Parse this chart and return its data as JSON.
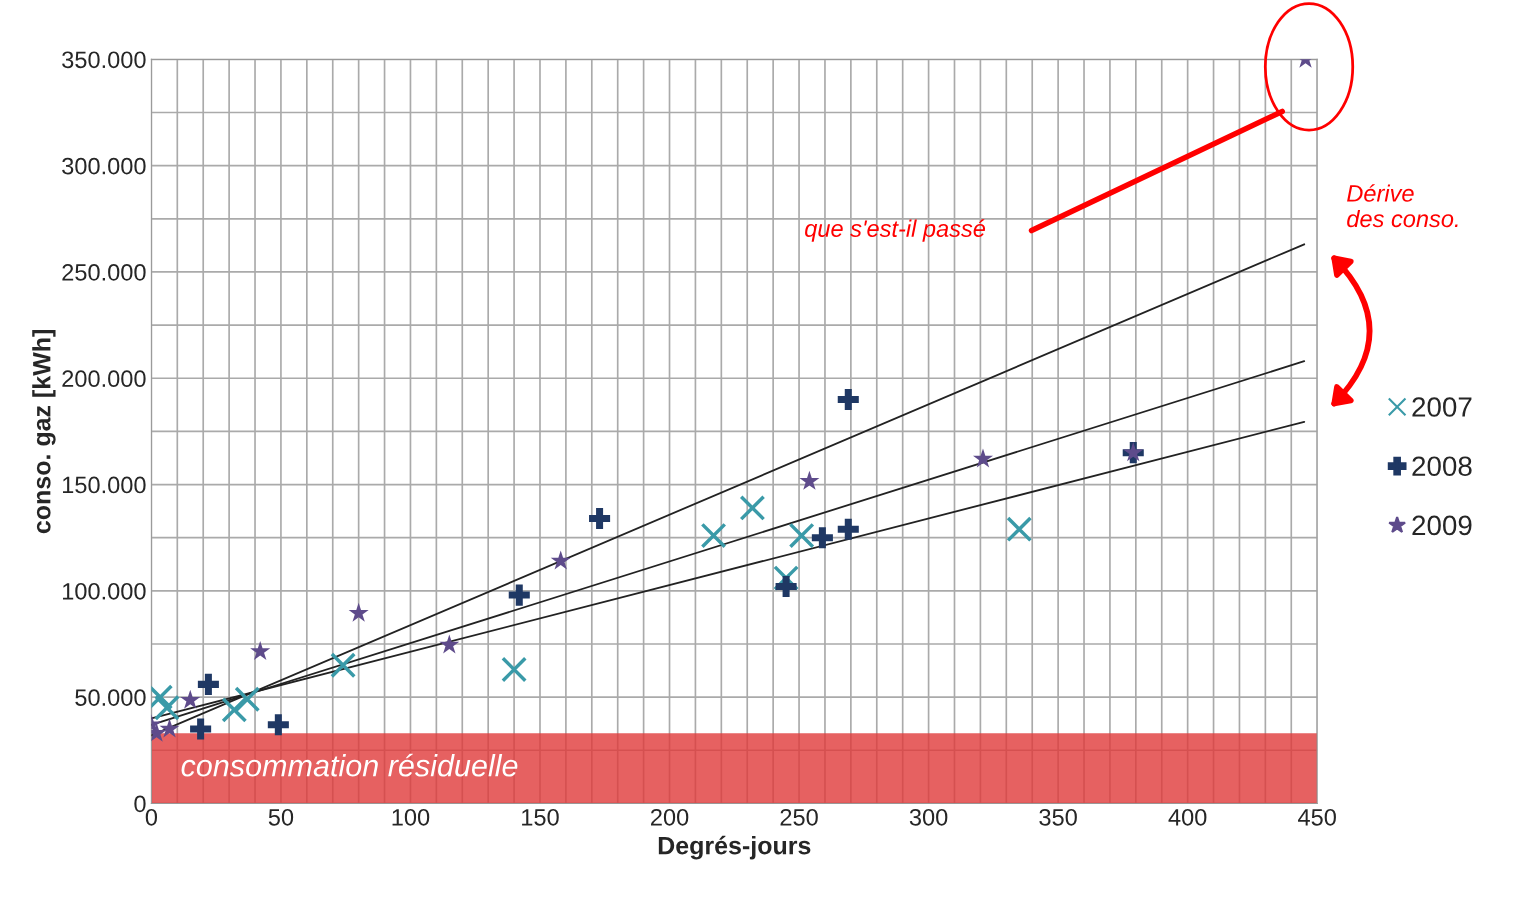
{
  "chart_data": {
    "type": "scatter",
    "xlabel": "Degrés-jours",
    "ylabel": "conso. gaz [kWh]",
    "series": [
      {
        "name": "2007",
        "color": "#3a9aa8",
        "marker": "cross",
        "x": [
          3.4,
          6,
          32,
          37,
          74,
          140,
          217,
          232,
          245,
          251,
          335
        ],
        "values": [
          50000,
          45000,
          44000,
          49000,
          65000,
          63000,
          126000,
          139000,
          106000,
          126000,
          129000
        ]
      },
      {
        "name": "2008",
        "color": "#1f3864",
        "x": [
          19,
          22,
          49,
          142,
          173,
          245,
          259,
          269,
          269,
          379
        ],
        "values": [
          35000,
          56000,
          37000,
          98000,
          134000,
          102000,
          125000,
          129000,
          190000,
          165000
        ]
      },
      {
        "name": "2009",
        "color": "#5e4b8b",
        "marker": "star",
        "x": [
          0,
          2,
          7,
          15,
          42,
          80,
          115,
          158,
          254,
          321,
          379,
          445.5
        ],
        "values": [
          37000,
          33000,
          35000,
          48500,
          71500,
          89500,
          74500,
          114000,
          151500,
          162000,
          165000,
          350000
        ]
      },
      {
        "type": "line",
        "color": "#222222",
        "x": [
          0,
          445
        ],
        "values": [
          32000,
          263000
        ]
      },
      {
        "type": "line",
        "color": "#222222",
        "x": [
          0,
          445
        ],
        "values": [
          37000,
          208000
        ]
      },
      {
        "type": "line",
        "color": "#222222",
        "x": [
          0,
          445
        ],
        "values": [
          40000,
          179500
        ]
      }
    ],
    "xlim": [
      0,
      450
    ],
    "ylim": [
      0,
      350000
    ],
    "xticks": [
      0,
      {
        "value": 10,
        "label": null
      },
      {
        "value": 20,
        "label": null
      },
      {
        "value": 30,
        "label": null
      },
      {
        "value": 40,
        "label": null
      },
      50,
      {
        "value": 60,
        "label": null
      },
      {
        "value": 70,
        "label": null
      },
      {
        "value": 80,
        "label": null
      },
      {
        "value": 90,
        "label": null
      },
      100,
      {
        "value": 110,
        "label": null
      },
      {
        "value": 120,
        "label": null
      },
      {
        "value": 130,
        "label": null
      },
      {
        "value": 140,
        "label": null
      },
      150,
      {
        "value": 160,
        "label": null
      },
      {
        "value": 170,
        "label": null
      },
      {
        "value": 180,
        "label": null
      },
      {
        "value": 190,
        "label": null
      },
      200,
      {
        "value": 210,
        "label": null
      },
      {
        "value": 220,
        "label": null
      },
      {
        "value": 230,
        "label": null
      },
      {
        "value": 240,
        "label": null
      },
      250,
      {
        "value": 260,
        "label": null
      },
      {
        "value": 270,
        "label": null
      },
      {
        "value": 280,
        "label": null
      },
      {
        "value": 290,
        "label": null
      },
      300,
      {
        "value": 310,
        "label": null
      },
      {
        "value": 320,
        "label": null
      },
      {
        "value": 330,
        "label": null
      },
      {
        "value": 340,
        "label": null
      },
      350,
      {
        "value": 360,
        "label": null
      },
      {
        "value": 370,
        "label": null
      },
      {
        "value": 380,
        "label": null
      },
      {
        "value": 390,
        "label": null
      },
      400,
      {
        "value": 410,
        "label": null
      },
      {
        "value": 420,
        "label": null
      },
      {
        "value": 430,
        "label": null
      },
      {
        "value": 440,
        "label": null
      },
      450
    ],
    "yticks": [
      0,
      {
        "value": 25000,
        "label": null
      },
      {
        "value": 50000,
        "label": "50.000"
      },
      {
        "value": 75000,
        "label": null
      },
      {
        "value": 100000,
        "label": "100.000"
      },
      {
        "value": 125000,
        "label": null
      },
      {
        "value": 150000,
        "label": "150.000"
      },
      {
        "value": 175000,
        "label": null
      },
      {
        "value": 200000,
        "label": "200.000"
      },
      {
        "value": 225000,
        "label": null
      },
      {
        "value": 250000,
        "label": "250.000"
      },
      {
        "value": 275000,
        "label": null
      },
      {
        "value": 300000,
        "label": "300.000"
      },
      {
        "value": 325000,
        "label": null
      },
      {
        "value": 350000,
        "label": "350.000"
      }
    ],
    "grid": true,
    "legend": "right",
    "bands": [
      {
        "axis": "y",
        "from": 0,
        "to": 33000,
        "label": "consommation résiduelle",
        "color": "#e03a3a"
      }
    ],
    "annotations": [
      "que s'est-il passé",
      "Dérive\ndes conso."
    ]
  }
}
